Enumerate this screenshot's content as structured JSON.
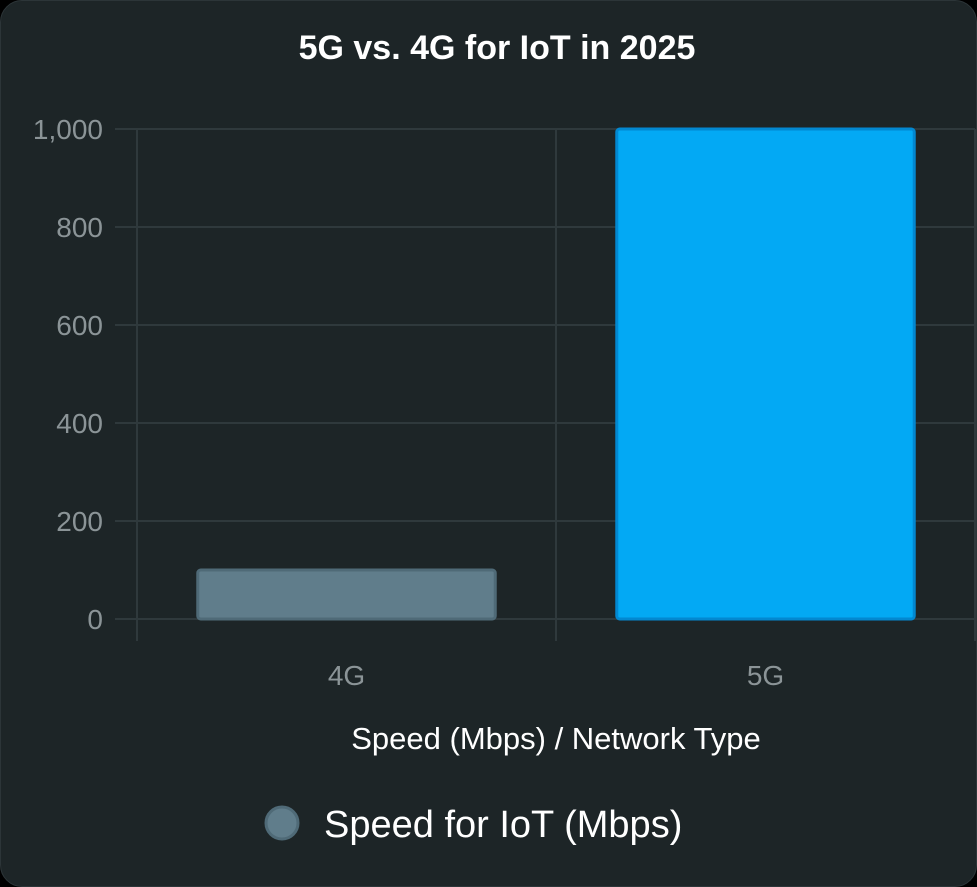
{
  "chart_data": {
    "type": "bar",
    "title": "5G vs. 4G for IoT in 2025",
    "xlabel": "Speed (Mbps) / Network Type",
    "ylabel": "",
    "categories": [
      "4G",
      "5G"
    ],
    "series": [
      {
        "name": "Speed for IoT (Mbps)",
        "values": [
          100,
          1000
        ]
      }
    ],
    "bar_colors": [
      "#607d8b",
      "#03a9f4"
    ],
    "bar_border_colors": [
      "#4f6a77",
      "#0288d1"
    ],
    "legend_color": "#607d8b",
    "ylim": [
      0,
      1000
    ],
    "yticks": [
      0,
      200,
      400,
      600,
      800,
      1000
    ],
    "ytick_labels": [
      "0",
      "200",
      "400",
      "600",
      "800",
      "1,000"
    ],
    "grid": true,
    "legend_position": "bottom"
  }
}
